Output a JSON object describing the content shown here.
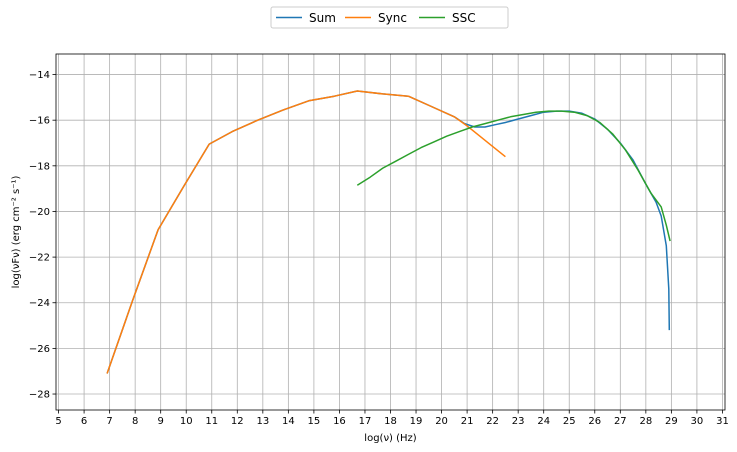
{
  "chart_data": {
    "type": "line",
    "title": "",
    "xlabel": "log(ν)  (Hz)",
    "ylabel": "log(νFν)  (erg cm⁻² s⁻¹)",
    "xlim": [
      4.9,
      31.1
    ],
    "ylim": [
      -28.7,
      -13.1
    ],
    "xticks": [
      5,
      6,
      7,
      8,
      9,
      10,
      11,
      12,
      13,
      14,
      15,
      16,
      17,
      18,
      19,
      20,
      21,
      22,
      23,
      24,
      25,
      26,
      27,
      28,
      29,
      30,
      31
    ],
    "yticks": [
      -28,
      -26,
      -24,
      -22,
      -20,
      -18,
      -16,
      -14
    ],
    "grid": true,
    "legend_position": "top-center, outside plot",
    "series": [
      {
        "name": "Sum",
        "color": "#1f77b4",
        "x": [
          6.9,
          7.9,
          8.9,
          9.9,
          10.9,
          11.8,
          12.8,
          13.8,
          14.8,
          15.8,
          16.7,
          17.7,
          18.7,
          19.6,
          20.5,
          20.9,
          21.3,
          21.7,
          22.1,
          22.5,
          23.0,
          23.5,
          24.0,
          24.5,
          25.0,
          25.5,
          26.0,
          26.5,
          27.0,
          27.5,
          28.0,
          28.4,
          28.6,
          28.8,
          28.9,
          28.92
        ],
        "y": [
          -27.1,
          -23.9,
          -20.8,
          -18.9,
          -17.05,
          -16.5,
          -16.0,
          -15.55,
          -15.15,
          -14.95,
          -14.72,
          -14.85,
          -14.95,
          -15.4,
          -15.85,
          -16.15,
          -16.3,
          -16.3,
          -16.2,
          -16.1,
          -15.95,
          -15.8,
          -15.65,
          -15.6,
          -15.6,
          -15.7,
          -15.95,
          -16.4,
          -17.0,
          -17.75,
          -18.8,
          -19.6,
          -20.2,
          -21.5,
          -23.4,
          -25.2
        ]
      },
      {
        "name": "Sync",
        "color": "#ff7f0e",
        "x": [
          6.9,
          7.9,
          8.9,
          9.9,
          10.9,
          11.8,
          12.8,
          13.8,
          14.8,
          15.8,
          16.7,
          17.7,
          18.7,
          19.6,
          20.5,
          21.0,
          21.5,
          22.0,
          22.5
        ],
        "y": [
          -27.1,
          -23.9,
          -20.8,
          -18.9,
          -17.05,
          -16.5,
          -16.0,
          -15.55,
          -15.15,
          -14.95,
          -14.72,
          -14.85,
          -14.95,
          -15.4,
          -15.85,
          -16.25,
          -16.7,
          -17.15,
          -17.6
        ]
      },
      {
        "name": "SSC",
        "color": "#2ca02c",
        "x": [
          16.7,
          17.2,
          17.7,
          18.2,
          18.7,
          19.2,
          19.7,
          20.2,
          20.7,
          21.2,
          21.7,
          22.2,
          22.7,
          23.2,
          23.7,
          24.2,
          24.7,
          25.2,
          25.7,
          26.2,
          26.7,
          27.2,
          27.7,
          28.2,
          28.6,
          28.8,
          28.95
        ],
        "y": [
          -18.85,
          -18.5,
          -18.1,
          -17.8,
          -17.5,
          -17.2,
          -16.95,
          -16.7,
          -16.5,
          -16.3,
          -16.15,
          -16.0,
          -15.85,
          -15.75,
          -15.65,
          -15.6,
          -15.6,
          -15.65,
          -15.8,
          -16.1,
          -16.6,
          -17.3,
          -18.2,
          -19.2,
          -19.8,
          -20.6,
          -21.3
        ]
      }
    ]
  }
}
